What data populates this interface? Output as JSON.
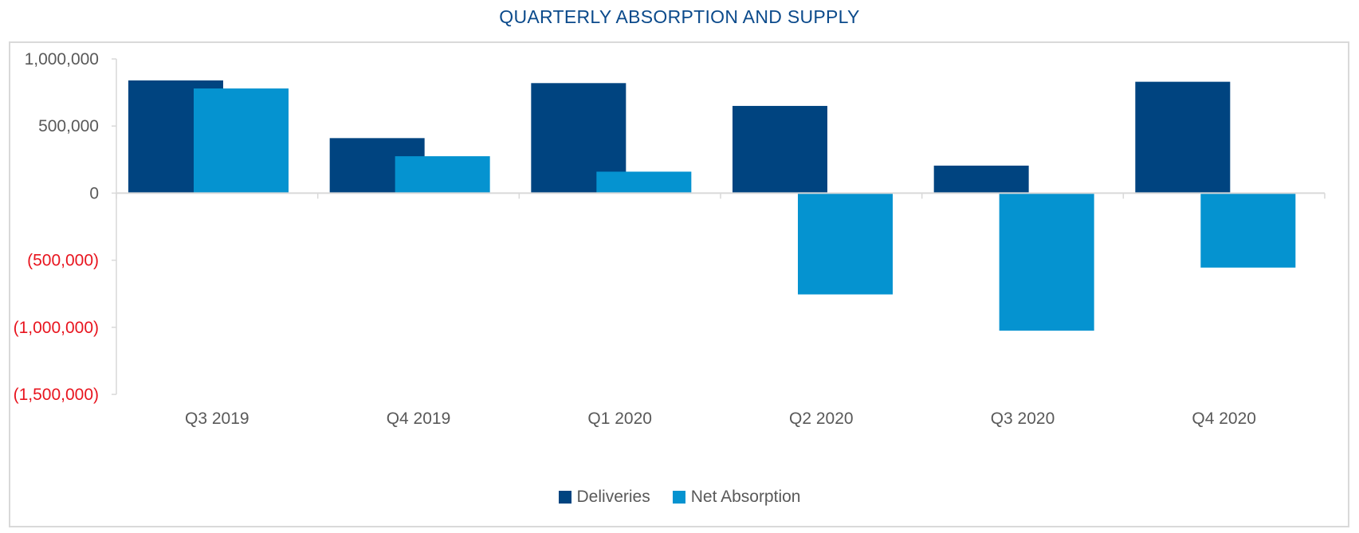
{
  "chart_data": {
    "type": "bar",
    "title": "QUARTERLY ABSORPTION AND SUPPLY",
    "categories": [
      "Q3 2019",
      "Q4 2019",
      "Q1 2020",
      "Q2 2020",
      "Q3 2020",
      "Q4 2020"
    ],
    "series": [
      {
        "name": "Deliveries",
        "color": "#004480",
        "values": [
          840000,
          410000,
          820000,
          650000,
          205000,
          830000
        ]
      },
      {
        "name": "Net Absorption",
        "color": "#0593d0",
        "values": [
          780000,
          275000,
          160000,
          -755000,
          -1025000,
          -555000
        ]
      }
    ],
    "ylim": [
      -1500000,
      1000000
    ],
    "yticks": [
      1000000,
      500000,
      0,
      -500000,
      -1000000,
      -1500000
    ],
    "ytick_labels": [
      "1,000,000",
      "500,000",
      "0",
      "(500,000)",
      "(1,000,000)",
      "(1,500,000)"
    ],
    "positive_tick_color": "#595959",
    "negative_tick_color": "#e8141e",
    "xlabel": "",
    "ylabel": "",
    "legend_position": "bottom-center",
    "grid": false
  }
}
